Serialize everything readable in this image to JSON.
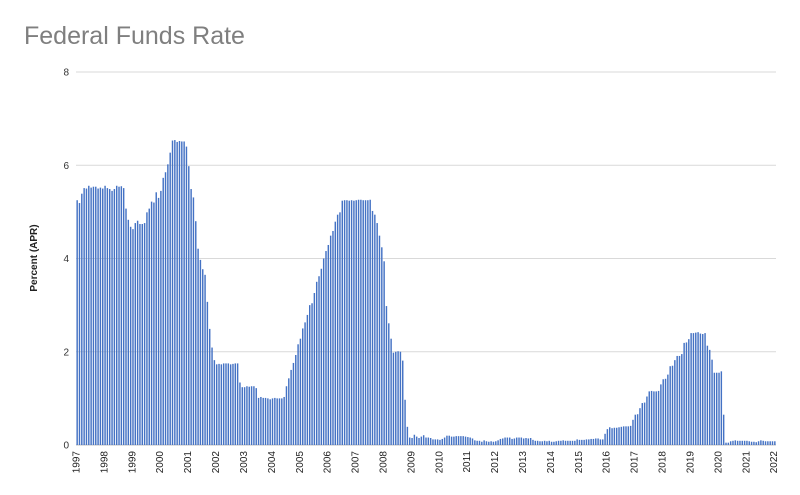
{
  "chart_data": {
    "type": "bar",
    "title": "Federal Funds Rate",
    "xlabel": "",
    "ylabel": "Percent (APR)",
    "ylim": [
      0,
      8
    ],
    "yticks": [
      0,
      2,
      4,
      6,
      8
    ],
    "grid": true,
    "color": "#4472c4",
    "x_tick_labels": [
      "1997",
      "1998",
      "1999",
      "2000",
      "2001",
      "2002",
      "2003",
      "2004",
      "2005",
      "2006",
      "2007",
      "2008",
      "2009",
      "2010",
      "2011",
      "2012",
      "2013",
      "2014",
      "2015",
      "2016",
      "2017",
      "2018",
      "2019",
      "2020",
      "2021",
      "2022"
    ],
    "series": [
      {
        "values": [
          5.25,
          5.19,
          5.39,
          5.51,
          5.5,
          5.56,
          5.52,
          5.54,
          5.54,
          5.5,
          5.52,
          5.5,
          5.56,
          5.51,
          5.49,
          5.45,
          5.49,
          5.56,
          5.54,
          5.55,
          5.51,
          5.07,
          4.83,
          4.68,
          4.63,
          4.76,
          4.81,
          4.74,
          4.74,
          4.76,
          4.99,
          5.07,
          5.22,
          5.2,
          5.42,
          5.3,
          5.45,
          5.73,
          5.85,
          6.02,
          6.27,
          6.53,
          6.54,
          6.5,
          6.52,
          6.51,
          6.51,
          6.4,
          5.98,
          5.49,
          5.31,
          4.8,
          4.21,
          3.97,
          3.77,
          3.65,
          3.07,
          2.49,
          2.09,
          1.82,
          1.73,
          1.74,
          1.73,
          1.75,
          1.75,
          1.75,
          1.73,
          1.74,
          1.75,
          1.75,
          1.34,
          1.24,
          1.24,
          1.26,
          1.25,
          1.26,
          1.26,
          1.22,
          1.01,
          1.03,
          1.01,
          1.01,
          1.0,
          0.98,
          1.0,
          1.01,
          1.0,
          1.0,
          1.0,
          1.03,
          1.26,
          1.43,
          1.61,
          1.76,
          1.93,
          2.16,
          2.28,
          2.5,
          2.63,
          2.79,
          3.0,
          3.04,
          3.26,
          3.5,
          3.62,
          3.78,
          4.0,
          4.16,
          4.29,
          4.49,
          4.59,
          4.79,
          4.94,
          4.99,
          5.24,
          5.25,
          5.25,
          5.24,
          5.25,
          5.24,
          5.25,
          5.26,
          5.26,
          5.25,
          5.25,
          5.25,
          5.26,
          5.02,
          4.94,
          4.76,
          4.49,
          4.24,
          3.94,
          2.98,
          2.61,
          2.28,
          1.98,
          2.0,
          2.01,
          2.0,
          1.81,
          0.97,
          0.39,
          0.16,
          0.15,
          0.22,
          0.18,
          0.15,
          0.18,
          0.21,
          0.16,
          0.16,
          0.15,
          0.12,
          0.12,
          0.12,
          0.11,
          0.13,
          0.16,
          0.2,
          0.2,
          0.18,
          0.18,
          0.19,
          0.19,
          0.19,
          0.19,
          0.18,
          0.17,
          0.16,
          0.14,
          0.1,
          0.09,
          0.09,
          0.07,
          0.1,
          0.08,
          0.07,
          0.08,
          0.07,
          0.08,
          0.1,
          0.13,
          0.14,
          0.16,
          0.16,
          0.16,
          0.13,
          0.14,
          0.16,
          0.16,
          0.16,
          0.14,
          0.15,
          0.14,
          0.15,
          0.11,
          0.09,
          0.09,
          0.08,
          0.08,
          0.09,
          0.08,
          0.09,
          0.07,
          0.07,
          0.08,
          0.09,
          0.09,
          0.1,
          0.09,
          0.09,
          0.09,
          0.09,
          0.09,
          0.12,
          0.11,
          0.11,
          0.11,
          0.12,
          0.12,
          0.13,
          0.13,
          0.14,
          0.14,
          0.12,
          0.12,
          0.24,
          0.34,
          0.38,
          0.36,
          0.37,
          0.37,
          0.38,
          0.39,
          0.4,
          0.4,
          0.4,
          0.41,
          0.54,
          0.65,
          0.66,
          0.79,
          0.9,
          0.91,
          1.04,
          1.15,
          1.16,
          1.15,
          1.15,
          1.16,
          1.3,
          1.41,
          1.42,
          1.51,
          1.69,
          1.7,
          1.82,
          1.91,
          1.91,
          1.95,
          2.19,
          2.2,
          2.27,
          2.4,
          2.4,
          2.41,
          2.42,
          2.39,
          2.38,
          2.4,
          2.13,
          2.04,
          1.83,
          1.55,
          1.55,
          1.55,
          1.58,
          0.65,
          0.05,
          0.05,
          0.08,
          0.09,
          0.1,
          0.09,
          0.09,
          0.09,
          0.09,
          0.09,
          0.08,
          0.07,
          0.07,
          0.06,
          0.08,
          0.1,
          0.09,
          0.08,
          0.08,
          0.08,
          0.08,
          0.08
        ]
      }
    ]
  }
}
